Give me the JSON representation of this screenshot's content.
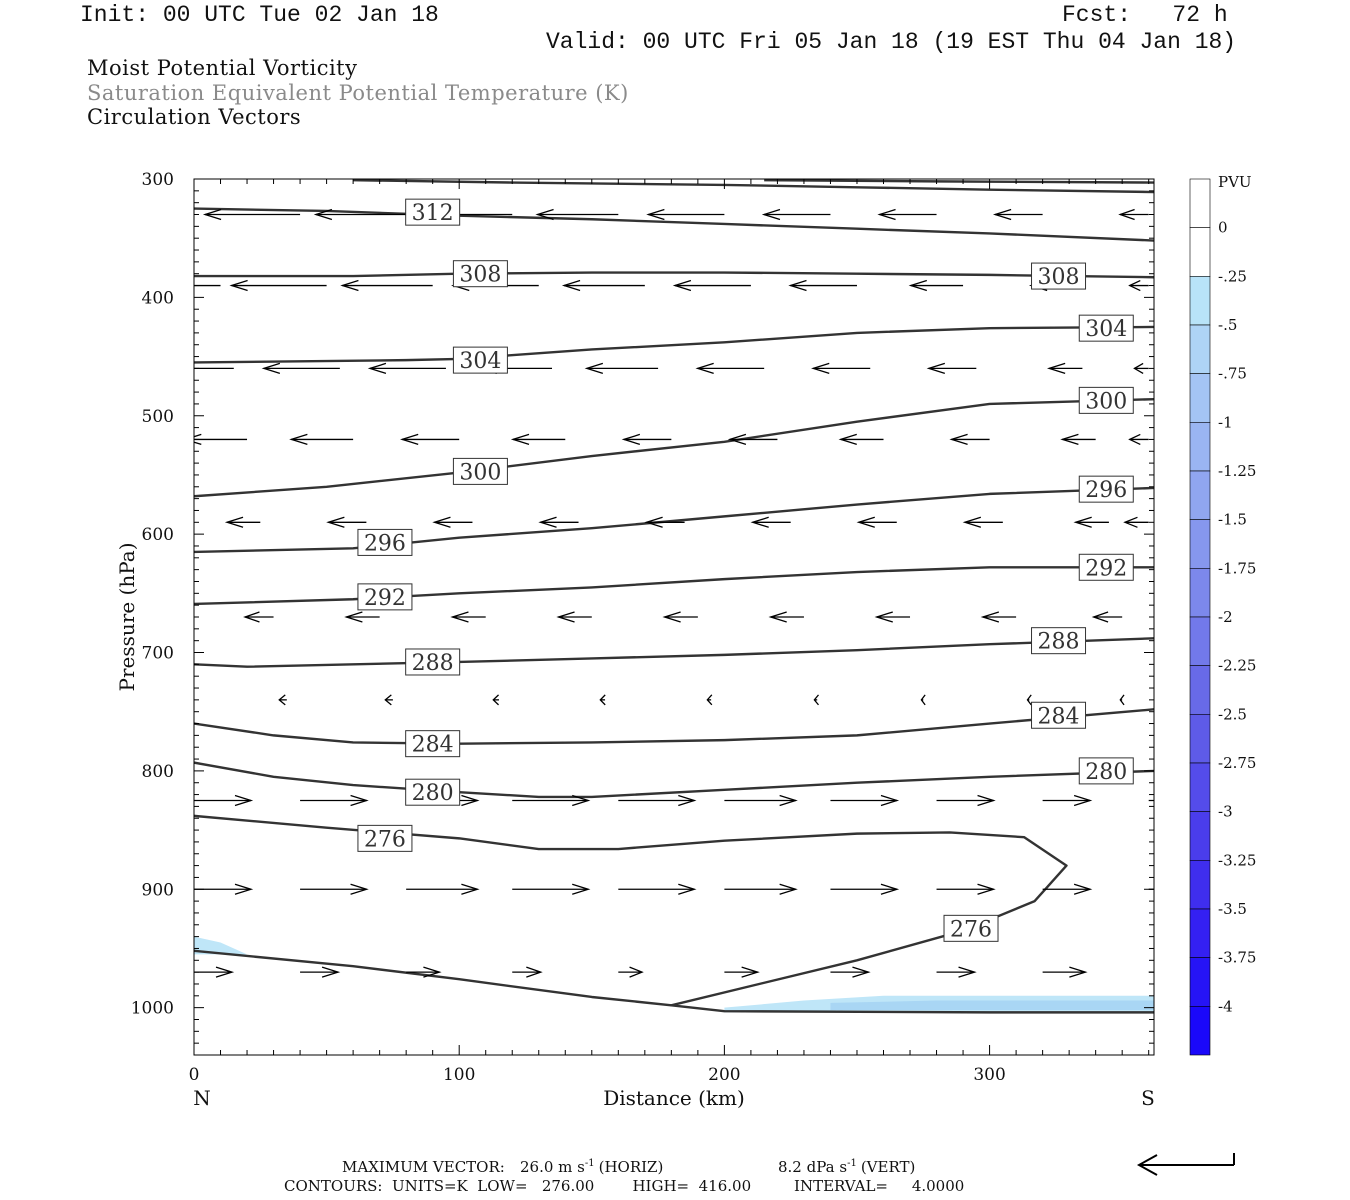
{
  "header": {
    "init": "Init: 00 UTC Tue 02 Jan 18",
    "fcst": "Fcst:   72 h",
    "valid": "Valid: 00 UTC Fri 05 Jan 18 (19 EST Thu 04 Jan 18)"
  },
  "titles": {
    "line1": "Moist Potential Vorticity",
    "line2": "Saturation Equivalent Potential Temperature (K)",
    "line3": "Circulation Vectors"
  },
  "footer": {
    "max_vector_label": "MAXIMUM VECTOR:",
    "max_vector_horiz": "26.0 m s",
    "horiz_tag": "(HORIZ)",
    "max_vector_vert": "8.2 dPa s",
    "vert_tag": "(VERT)",
    "exponent": "-1",
    "contours_line": "CONTOURS:  UNITS=K  LOW=   276.00        HIGH=  416.00         INTERVAL=     4.0000"
  },
  "chart_data": {
    "type": "cross-section contour",
    "xlabel": "Distance (km)",
    "ylabel": "Pressure (hPa)",
    "xlim": [
      0,
      362
    ],
    "ylim": [
      1040,
      300
    ],
    "x_ticks": [
      0,
      100,
      200,
      300
    ],
    "y_ticks": [
      300,
      400,
      500,
      600,
      700,
      800,
      900,
      1000
    ],
    "x_end_labels": {
      "left": "N",
      "right": "S"
    },
    "contour_units": "K",
    "contours": [
      {
        "level": 312,
        "points": [
          [
            0,
            325
          ],
          [
            50,
            327
          ],
          [
            100,
            331
          ],
          [
            150,
            334
          ],
          [
            200,
            338
          ],
          [
            250,
            342
          ],
          [
            300,
            346
          ],
          [
            362,
            352
          ]
        ]
      },
      {
        "level": 312,
        "points": [
          [
            60,
            301
          ],
          [
            120,
            303
          ],
          [
            200,
            305
          ],
          [
            250,
            307
          ],
          [
            300,
            309
          ],
          [
            362,
            311
          ]
        ]
      },
      {
        "level": 312,
        "points": [
          [
            215,
            301
          ],
          [
            280,
            302
          ],
          [
            362,
            303
          ]
        ]
      },
      {
        "level": 308,
        "points": [
          [
            0,
            382
          ],
          [
            60,
            382
          ],
          [
            100,
            380
          ],
          [
            150,
            379
          ],
          [
            200,
            379
          ],
          [
            250,
            380
          ],
          [
            300,
            381
          ],
          [
            362,
            383
          ]
        ]
      },
      {
        "level": 304,
        "points": [
          [
            0,
            455
          ],
          [
            80,
            453
          ],
          [
            100,
            452
          ],
          [
            150,
            444
          ],
          [
            200,
            438
          ],
          [
            250,
            430
          ],
          [
            300,
            426
          ],
          [
            362,
            425
          ]
        ]
      },
      {
        "level": 300,
        "points": [
          [
            0,
            568
          ],
          [
            50,
            560
          ],
          [
            100,
            548
          ],
          [
            150,
            534
          ],
          [
            200,
            522
          ],
          [
            250,
            505
          ],
          [
            300,
            490
          ],
          [
            362,
            486
          ]
        ]
      },
      {
        "level": 296,
        "points": [
          [
            0,
            615
          ],
          [
            60,
            612
          ],
          [
            100,
            603
          ],
          [
            150,
            595
          ],
          [
            200,
            585
          ],
          [
            250,
            575
          ],
          [
            300,
            566
          ],
          [
            362,
            561
          ]
        ]
      },
      {
        "level": 292,
        "points": [
          [
            0,
            659
          ],
          [
            60,
            655
          ],
          [
            100,
            650
          ],
          [
            150,
            645
          ],
          [
            200,
            638
          ],
          [
            250,
            632
          ],
          [
            300,
            628
          ],
          [
            362,
            628
          ]
        ]
      },
      {
        "level": 288,
        "points": [
          [
            0,
            710
          ],
          [
            20,
            712
          ],
          [
            100,
            708
          ],
          [
            150,
            705
          ],
          [
            200,
            702
          ],
          [
            250,
            698
          ],
          [
            300,
            693
          ],
          [
            362,
            688
          ]
        ]
      },
      {
        "level": 284,
        "points": [
          [
            0,
            760
          ],
          [
            30,
            770
          ],
          [
            60,
            776
          ],
          [
            100,
            777
          ],
          [
            150,
            776
          ],
          [
            200,
            774
          ],
          [
            250,
            770
          ],
          [
            300,
            760
          ],
          [
            362,
            748
          ]
        ]
      },
      {
        "level": 280,
        "points": [
          [
            0,
            793
          ],
          [
            30,
            805
          ],
          [
            60,
            812
          ],
          [
            100,
            818
          ],
          [
            130,
            822
          ],
          [
            150,
            822
          ],
          [
            200,
            816
          ],
          [
            250,
            810
          ],
          [
            300,
            805
          ],
          [
            362,
            800
          ]
        ]
      },
      {
        "level": 276,
        "points": [
          [
            0,
            838
          ],
          [
            50,
            848
          ],
          [
            100,
            857
          ],
          [
            130,
            866
          ],
          [
            160,
            866
          ],
          [
            200,
            859
          ],
          [
            250,
            853
          ],
          [
            285,
            852
          ],
          [
            313,
            856
          ],
          [
            329,
            880
          ],
          [
            317,
            910
          ],
          [
            290,
            935
          ],
          [
            250,
            960
          ],
          [
            180,
            998
          ],
          [
            200,
            1003
          ],
          [
            300,
            1004
          ],
          [
            362,
            1004
          ]
        ]
      },
      {
        "level": 276,
        "points": [
          [
            0,
            952
          ],
          [
            60,
            965
          ],
          [
            100,
            976
          ],
          [
            150,
            991
          ],
          [
            180,
            998
          ]
        ]
      }
    ],
    "contour_labels": [
      {
        "text": "312",
        "x": 90,
        "p": 328
      },
      {
        "text": "308",
        "x": 108,
        "p": 380
      },
      {
        "text": "308",
        "x": 326,
        "p": 382
      },
      {
        "text": "304",
        "x": 108,
        "p": 453
      },
      {
        "text": "304",
        "x": 344,
        "p": 426
      },
      {
        "text": "300",
        "x": 108,
        "p": 547
      },
      {
        "text": "300",
        "x": 344,
        "p": 487
      },
      {
        "text": "296",
        "x": 72,
        "p": 607
      },
      {
        "text": "296",
        "x": 344,
        "p": 562
      },
      {
        "text": "292",
        "x": 72,
        "p": 653
      },
      {
        "text": "292",
        "x": 344,
        "p": 628
      },
      {
        "text": "288",
        "x": 90,
        "p": 708
      },
      {
        "text": "288",
        "x": 326,
        "p": 690
      },
      {
        "text": "284",
        "x": 90,
        "p": 777
      },
      {
        "text": "284",
        "x": 326,
        "p": 753
      },
      {
        "text": "280",
        "x": 90,
        "p": 818
      },
      {
        "text": "280",
        "x": 344,
        "p": 800
      },
      {
        "text": "276",
        "x": 72,
        "p": 857
      },
      {
        "text": "276",
        "x": 293,
        "p": 933
      }
    ],
    "vector_rows": [
      {
        "p": 330,
        "x": [
          0,
          40,
          80,
          120,
          160,
          200,
          240,
          280,
          320,
          360
        ],
        "u": [
          -1.0,
          -1.0,
          -0.95,
          -0.9,
          -0.85,
          -0.8,
          -0.7,
          -0.6,
          -0.5,
          -0.3
        ]
      },
      {
        "p": 390,
        "x": [
          10,
          50,
          90,
          130,
          170,
          210,
          250,
          290,
          330,
          360
        ],
        "u": [
          -1.0,
          -1.0,
          -0.95,
          -0.9,
          -0.85,
          -0.8,
          -0.7,
          -0.55,
          -0.4,
          -0.2
        ]
      },
      {
        "p": 460,
        "x": [
          15,
          55,
          95,
          135,
          175,
          215,
          255,
          295,
          335,
          360
        ],
        "u": [
          -0.8,
          -0.8,
          -0.8,
          -0.75,
          -0.75,
          -0.7,
          -0.6,
          -0.5,
          -0.35,
          -0.15
        ]
      },
      {
        "p": 520,
        "x": [
          20,
          60,
          100,
          140,
          180,
          220,
          260,
          300,
          340,
          360
        ],
        "u": [
          -0.65,
          -0.65,
          -0.6,
          -0.55,
          -0.5,
          -0.5,
          -0.45,
          -0.4,
          -0.35,
          -0.2
        ]
      },
      {
        "p": 590,
        "x": [
          25,
          65,
          105,
          145,
          185,
          225,
          265,
          305,
          345,
          360
        ],
        "u": [
          -0.35,
          -0.4,
          -0.4,
          -0.4,
          -0.4,
          -0.4,
          -0.4,
          -0.4,
          -0.35,
          -0.25
        ]
      },
      {
        "p": 670,
        "x": [
          30,
          70,
          110,
          150,
          190,
          230,
          270,
          310,
          350
        ],
        "u": [
          -0.3,
          -0.35,
          -0.35,
          -0.35,
          -0.35,
          -0.35,
          -0.35,
          -0.35,
          -0.3
        ]
      },
      {
        "p": 740,
        "x": [
          35,
          75,
          115,
          155,
          195,
          235,
          275,
          315,
          350
        ],
        "u": [
          -0.08,
          -0.08,
          -0.06,
          -0.05,
          -0.04,
          -0.03,
          -0.02,
          -0.02,
          -0.02
        ]
      },
      {
        "p": 825,
        "x": [
          0,
          40,
          80,
          120,
          160,
          200,
          240,
          280,
          320,
          360
        ],
        "u": [
          0.6,
          0.7,
          0.75,
          0.8,
          0.8,
          0.75,
          0.7,
          0.6,
          0.5,
          0.4
        ]
      },
      {
        "p": 900,
        "x": [
          0,
          40,
          80,
          120,
          160,
          200,
          240,
          280,
          320,
          360
        ],
        "u": [
          0.6,
          0.7,
          0.75,
          0.8,
          0.8,
          0.75,
          0.7,
          0.6,
          0.5,
          0.4
        ]
      },
      {
        "p": 970,
        "x": [
          0,
          40,
          80,
          120,
          160,
          200,
          240,
          280,
          320,
          360
        ],
        "u": [
          0.4,
          0.4,
          0.35,
          0.3,
          0.25,
          0.35,
          0.4,
          0.4,
          0.45,
          0.45
        ]
      }
    ],
    "shaded_pv": [
      {
        "value": -0.25,
        "color": "#bfe6f8",
        "points": [
          [
            0,
            940
          ],
          [
            10,
            945
          ],
          [
            20,
            955
          ],
          [
            0,
            955
          ]
        ]
      },
      {
        "value": -0.25,
        "color": "#bfe6f8",
        "points": [
          [
            200,
            1000
          ],
          [
            230,
            994
          ],
          [
            260,
            990
          ],
          [
            300,
            990
          ],
          [
            362,
            990
          ],
          [
            362,
            1004
          ],
          [
            200,
            1004
          ]
        ]
      },
      {
        "value": -0.5,
        "color": "#a9d6f4",
        "points": [
          [
            240,
            996
          ],
          [
            280,
            994
          ],
          [
            362,
            994
          ],
          [
            362,
            1002
          ],
          [
            240,
            1002
          ]
        ]
      }
    ],
    "colorbar": {
      "title": "PVU",
      "labels": [
        "0",
        "-.25",
        "-.5",
        "-.75",
        "-1",
        "-1.25",
        "-1.5",
        "-1.75",
        "-2",
        "-2.25",
        "-2.5",
        "-2.75",
        "-3",
        "-3.25",
        "-3.5",
        "-3.75",
        "-4"
      ],
      "colors": [
        "#ffffff",
        "#ffffff",
        "#b8e3f8",
        "#aed4f6",
        "#a4c4f4",
        "#9ab5f2",
        "#90a6f0",
        "#8697ee",
        "#7c88ec",
        "#7279ea",
        "#686ae8",
        "#5e5be8",
        "#544cea",
        "#4a3dec",
        "#3f2eee",
        "#3420f2",
        "#2614f6",
        "#1a08fa"
      ]
    },
    "reference_vector_present": true
  }
}
